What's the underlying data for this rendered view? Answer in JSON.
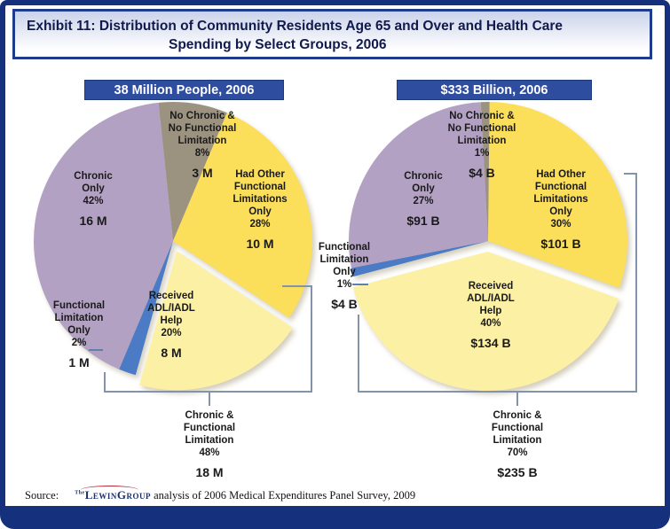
{
  "page": {
    "title_line1": "Exhibit 11: Distribution of Community Residents Age 65 and Over and Health Care",
    "title_line2": "Spending by Select Groups, 2006",
    "source_prefix": "Source:",
    "logo_the": "The",
    "logo_name": "LewinGroup",
    "source_text": "analysis of 2006 Medical Expenditures Panel Survey, 2009"
  },
  "colors": {
    "frame_navy": "#15317E",
    "header_bg": "#2E4D9E",
    "header_text": "#FFFFFF",
    "title_text": "#101A4D",
    "title_border": "#1E3B8E",
    "title_grad_top": "#CBD3EA",
    "bracket_line": "#8493AC",
    "label_text": "#1A1A1A",
    "leader_line": "#5F7FAE",
    "logo_navy": "#1B2F6E",
    "logo_red": "#B3283A"
  },
  "chart_data": [
    {
      "type": "pie",
      "title": "38 Million People, 2006",
      "units": "millions of people",
      "rotation": -6,
      "legend_position": "labels-on-chart",
      "slices": [
        {
          "id": "no-chronic",
          "label": "No Chronic &\nNo Functional\nLimitation",
          "pct": 8,
          "pct_label": "8%",
          "value": "3 M",
          "color": "#9B9280",
          "exploded": false
        },
        {
          "id": "had-other",
          "label": "Had Other\nFunctional\nLimitations\nOnly",
          "pct": 28,
          "pct_label": "28%",
          "value": "10 M",
          "color": "#FBDE59",
          "exploded": false
        },
        {
          "id": "received-adl",
          "label": "Received\nADL/IADL\nHelp",
          "pct": 20,
          "pct_label": "20%",
          "value": "8 M",
          "color": "#FCF0A5",
          "exploded": true
        },
        {
          "id": "functional-only",
          "label": "Functional\nLimitation\nOnly",
          "pct": 2,
          "pct_label": "2%",
          "value": "1 M",
          "color": "#4A7BC4",
          "exploded": false
        },
        {
          "id": "chronic-only",
          "label": "Chronic\nOnly",
          "pct": 42,
          "pct_label": "42%",
          "value": "16 M",
          "color": "#B3A1C4",
          "exploded": false
        }
      ],
      "bracket": {
        "label": "Chronic &\nFunctional\nLimitation",
        "pct_label": "48%",
        "value": "18 M"
      }
    },
    {
      "type": "pie",
      "title": "$333 Billion, 2006",
      "units": "billions of dollars",
      "rotation": -3,
      "legend_position": "labels-on-chart",
      "slices": [
        {
          "id": "no-chronic",
          "label": "No Chronic &\nNo Functional\nLimitation",
          "pct": 1,
          "pct_label": "1%",
          "value": "$4 B",
          "color": "#9B9280",
          "exploded": false
        },
        {
          "id": "had-other",
          "label": "Had Other\nFunctional\nLimitations\nOnly",
          "pct": 30,
          "pct_label": "30%",
          "value": "$101 B",
          "color": "#FBDE59",
          "exploded": false
        },
        {
          "id": "received-adl",
          "label": "Received\nADL/IADL\nHelp",
          "pct": 40,
          "pct_label": "40%",
          "value": "$134 B",
          "color": "#FCF0A5",
          "exploded": true
        },
        {
          "id": "functional-only",
          "label": "Functional\nLimitation\nOnly",
          "pct": 1,
          "pct_label": "1%",
          "value": "$4 B",
          "color": "#4A7BC4",
          "exploded": false
        },
        {
          "id": "chronic-only",
          "label": "Chronic\nOnly",
          "pct": 27,
          "pct_label": "27%",
          "value": "$91 B",
          "color": "#B3A1C4",
          "exploded": false
        }
      ],
      "bracket": {
        "label": "Chronic &\nFunctional\nLimitation",
        "pct_label": "70%",
        "value": "$235 B"
      }
    }
  ]
}
